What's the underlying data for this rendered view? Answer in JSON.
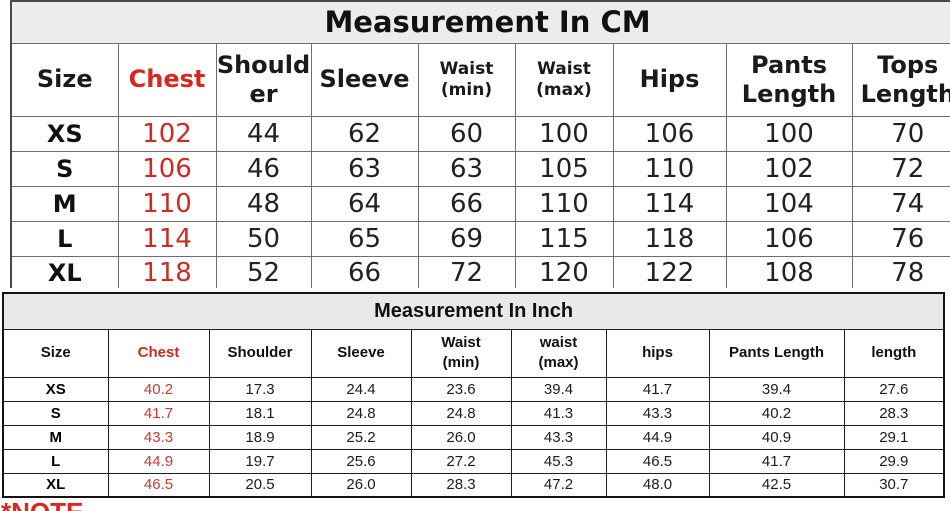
{
  "note": "*NOTE",
  "colors": {
    "red_accent_header": "#d8281e",
    "red_accent_values": "#cb2d24",
    "title_bar_bg_cm": "#ececec",
    "title_bar_bg_inch": "#e9e9e9",
    "grid_border_cm": "#6e6e6e",
    "grid_border_inch": "#1f1f1f"
  },
  "chart_data": [
    {
      "type": "table",
      "title": "Measurement In CM",
      "columns": [
        "Size",
        "Chest",
        "Shoulder",
        "Sleeve",
        "Waist\n(min)",
        "Waist\n(max)",
        "Hips",
        "Pants Length",
        "Tops Length"
      ],
      "rows": [
        [
          "XS",
          "102",
          "44",
          "62",
          "60",
          "100",
          "106",
          "100",
          "70"
        ],
        [
          "S",
          "106",
          "46",
          "63",
          "63",
          "105",
          "110",
          "102",
          "72"
        ],
        [
          "M",
          "110",
          "48",
          "64",
          "66",
          "110",
          "114",
          "104",
          "74"
        ],
        [
          "L",
          "114",
          "50",
          "65",
          "69",
          "115",
          "118",
          "106",
          "76"
        ],
        [
          "XL",
          "118",
          "52",
          "66",
          "72",
          "120",
          "122",
          "108",
          "78"
        ]
      ]
    },
    {
      "type": "table",
      "title": "Measurement In Inch",
      "columns": [
        "Size",
        "Chest",
        "Shoulder",
        "Sleeve",
        "Waist\n(min)",
        "waist\n(max)",
        "hips",
        "Pants Length",
        "length"
      ],
      "rows": [
        [
          "XS",
          "40.2",
          "17.3",
          "24.4",
          "23.6",
          "39.4",
          "41.7",
          "39.4",
          "27.6"
        ],
        [
          "S",
          "41.7",
          "18.1",
          "24.8",
          "24.8",
          "41.3",
          "43.3",
          "40.2",
          "28.3"
        ],
        [
          "M",
          "43.3",
          "18.9",
          "25.2",
          "26.0",
          "43.3",
          "44.9",
          "40.9",
          "29.1"
        ],
        [
          "L",
          "44.9",
          "19.7",
          "25.6",
          "27.2",
          "45.3",
          "46.5",
          "41.7",
          "29.9"
        ],
        [
          "XL",
          "46.5",
          "20.5",
          "26.0",
          "28.3",
          "47.2",
          "48.0",
          "42.5",
          "30.7"
        ]
      ]
    }
  ]
}
